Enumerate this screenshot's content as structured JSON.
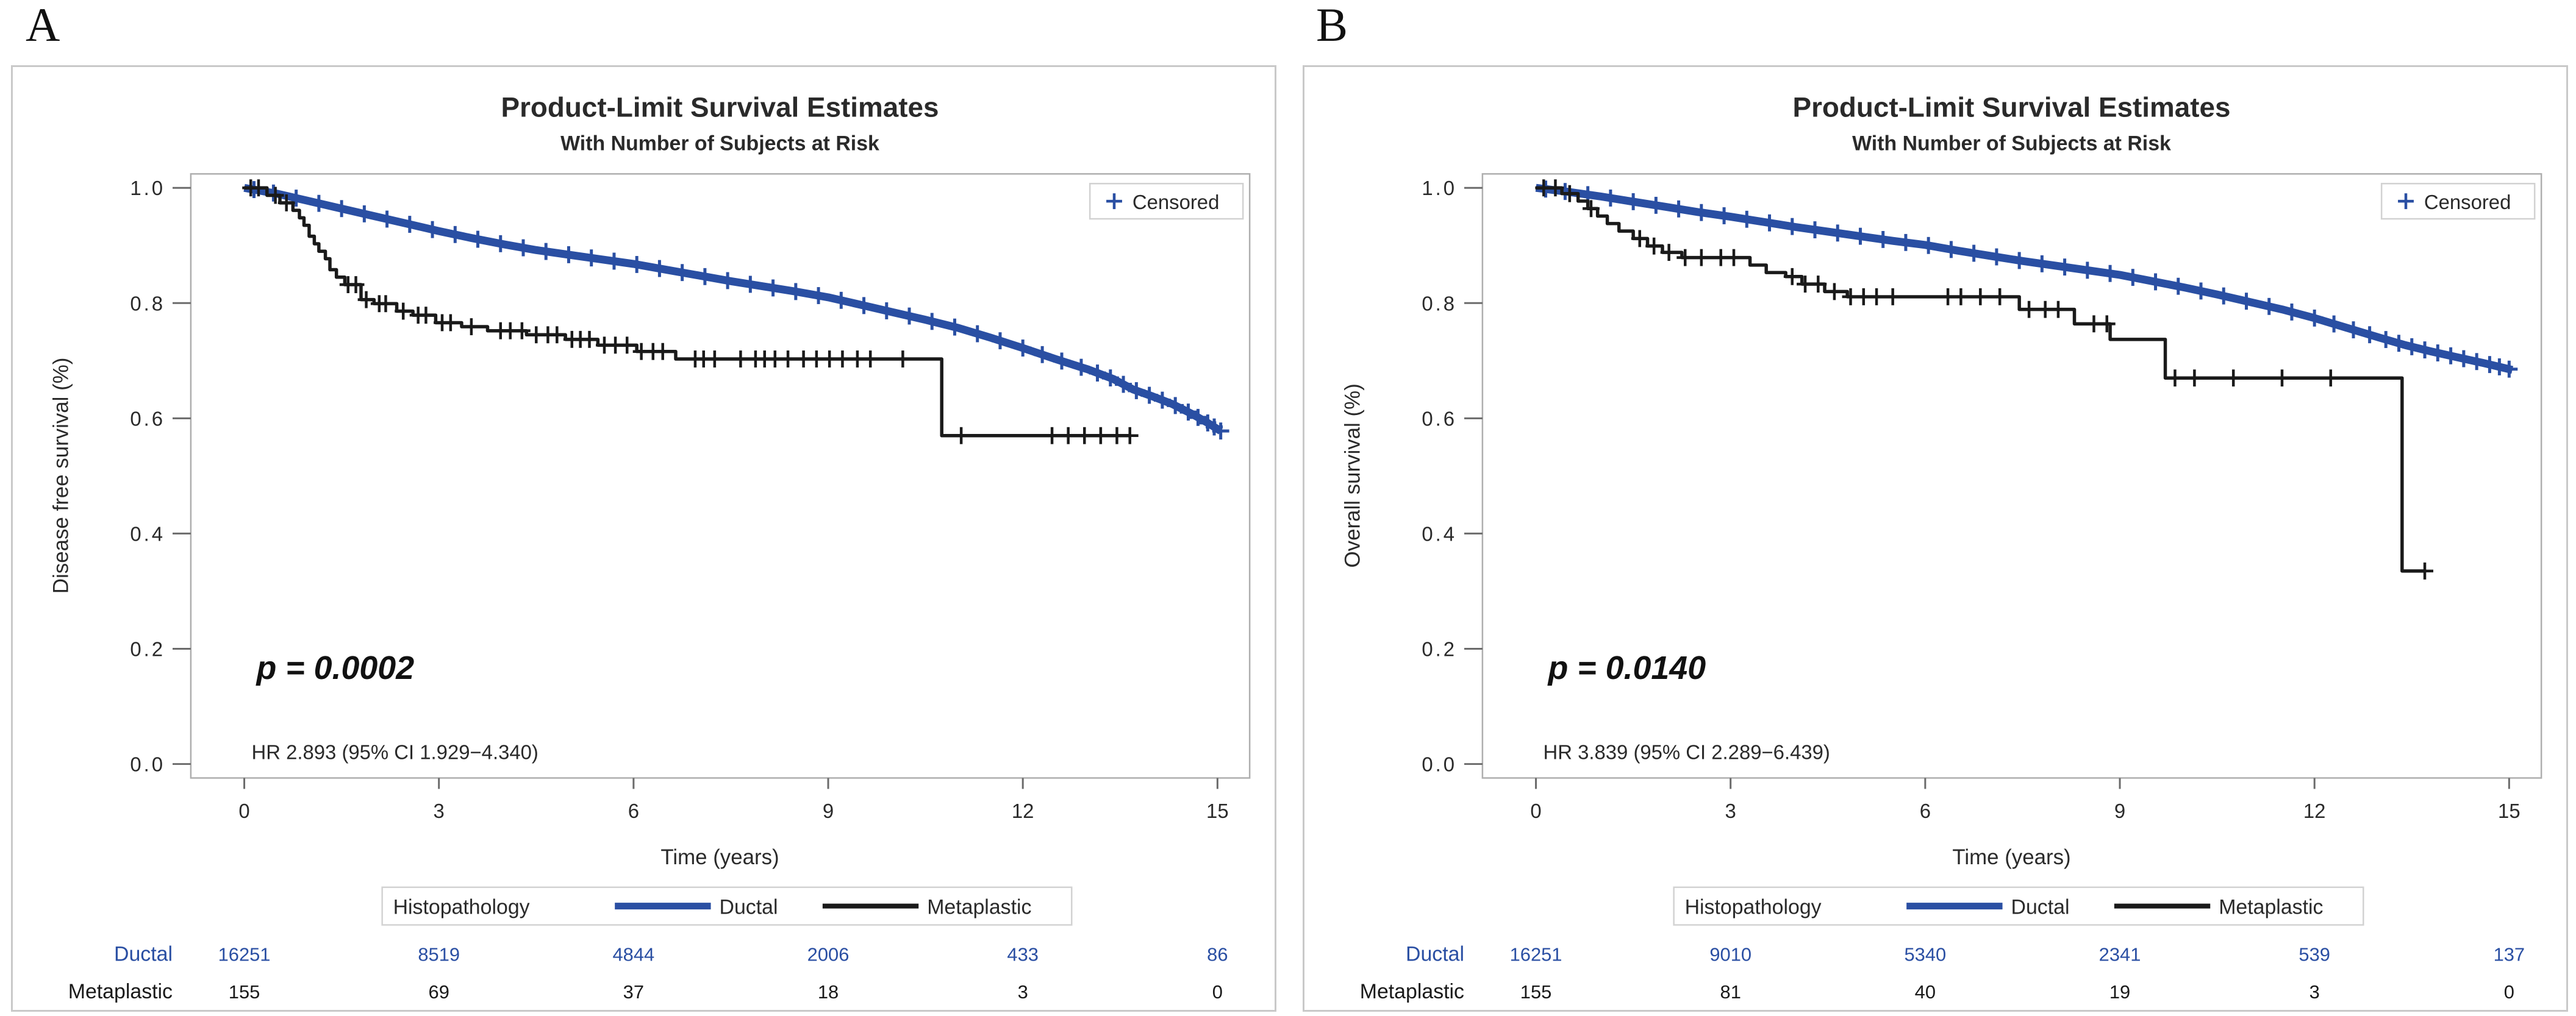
{
  "page_background": "#ffffff",
  "panel_labels": [
    "A",
    "B"
  ],
  "chart_data": [
    {
      "type": "line",
      "km_panel": "A",
      "title": "Product-Limit Survival Estimates",
      "subtitle": "With Number of Subjects at Risk",
      "xlabel": "Time (years)",
      "ylabel": "Disease free survival (%)",
      "xlim": [
        0,
        15.4
      ],
      "ylim": [
        0.0,
        1.0
      ],
      "xticks": [
        0,
        3,
        6,
        9,
        12,
        15
      ],
      "ytick_labels": [
        "1.0",
        "0.8",
        "0.6",
        "0.4",
        "0.2",
        "0.0"
      ],
      "grid": false,
      "censored_legend_label": "Censored",
      "censored_marker_color": "#2a4fa3",
      "p_value_text": "p = 0.0002",
      "hr_text": "HR 2.893 (95% CI 1.929−4.340)",
      "legend": {
        "title": "Histopathology",
        "position": "bottom"
      },
      "series": [
        {
          "name": "Ductal",
          "color": "#2a4fa3",
          "step": false,
          "points": [
            [
              0,
              1.0
            ],
            [
              0.5,
              0.99
            ],
            [
              1,
              0.977
            ],
            [
              1.5,
              0.964
            ],
            [
              2,
              0.951
            ],
            [
              2.5,
              0.938
            ],
            [
              3,
              0.925
            ],
            [
              3.5,
              0.913
            ],
            [
              4,
              0.902
            ],
            [
              4.5,
              0.892
            ],
            [
              5,
              0.884
            ],
            [
              5.5,
              0.876
            ],
            [
              6,
              0.868
            ],
            [
              6.5,
              0.858
            ],
            [
              7,
              0.848
            ],
            [
              7.5,
              0.838
            ],
            [
              8,
              0.829
            ],
            [
              8.5,
              0.82
            ],
            [
              9,
              0.81
            ],
            [
              9.5,
              0.797
            ],
            [
              10,
              0.784
            ],
            [
              10.5,
              0.771
            ],
            [
              11,
              0.757
            ],
            [
              11.5,
              0.74
            ],
            [
              12,
              0.722
            ],
            [
              12.5,
              0.703
            ],
            [
              13,
              0.685
            ],
            [
              13.4,
              0.668
            ],
            [
              13.7,
              0.65
            ],
            [
              14,
              0.638
            ],
            [
              14.3,
              0.625
            ],
            [
              14.6,
              0.608
            ],
            [
              14.85,
              0.592
            ],
            [
              15.05,
              0.578
            ]
          ],
          "censor_times": [
            0.15,
            0.45,
            0.8,
            1.15,
            1.5,
            1.85,
            2.2,
            2.55,
            2.9,
            3.25,
            3.6,
            3.95,
            4.3,
            4.65,
            5.0,
            5.35,
            5.7,
            6.05,
            6.4,
            6.75,
            7.1,
            7.45,
            7.8,
            8.15,
            8.5,
            8.85,
            9.2,
            9.55,
            9.9,
            10.25,
            10.6,
            10.95,
            11.3,
            11.65,
            12.0,
            12.3,
            12.6,
            12.9,
            13.15,
            13.35,
            13.55,
            13.75,
            13.95,
            14.15,
            14.35,
            14.55,
            14.7,
            14.85,
            14.95,
            15.05
          ]
        },
        {
          "name": "Metaplastic",
          "color": "#1a1a1a",
          "step": true,
          "points": [
            [
              0,
              1.0
            ],
            [
              0.35,
              0.987
            ],
            [
              0.55,
              0.974
            ],
            [
              0.75,
              0.961
            ],
            [
              0.85,
              0.948
            ],
            [
              0.92,
              0.935
            ],
            [
              1.0,
              0.916
            ],
            [
              1.08,
              0.903
            ],
            [
              1.15,
              0.89
            ],
            [
              1.25,
              0.877
            ],
            [
              1.32,
              0.858
            ],
            [
              1.42,
              0.845
            ],
            [
              1.55,
              0.832
            ],
            [
              1.8,
              0.806
            ],
            [
              2.0,
              0.799
            ],
            [
              2.35,
              0.786
            ],
            [
              2.6,
              0.779
            ],
            [
              2.95,
              0.766
            ],
            [
              3.35,
              0.759
            ],
            [
              3.75,
              0.752
            ],
            [
              4.35,
              0.745
            ],
            [
              4.95,
              0.737
            ],
            [
              5.45,
              0.727
            ],
            [
              6.05,
              0.716
            ],
            [
              6.65,
              0.703
            ],
            [
              10.75,
              0.57
            ],
            [
              13.65,
              0.57
            ]
          ],
          "censor_times": [
            0.1,
            0.22,
            0.48,
            0.65,
            1.6,
            1.72,
            1.88,
            2.08,
            2.18,
            2.45,
            2.68,
            2.8,
            3.05,
            3.18,
            3.5,
            3.95,
            4.1,
            4.28,
            4.5,
            4.68,
            4.82,
            5.05,
            5.18,
            5.32,
            5.55,
            5.72,
            5.9,
            6.12,
            6.3,
            6.45,
            6.95,
            7.08,
            7.25,
            7.65,
            7.88,
            8.02,
            8.18,
            8.38,
            8.62,
            8.82,
            9.02,
            9.22,
            9.45,
            9.65,
            10.15,
            11.05,
            12.45,
            12.7,
            12.95,
            13.2,
            13.45,
            13.65
          ]
        }
      ],
      "at_risk": {
        "times": [
          0,
          3,
          6,
          9,
          12,
          15
        ],
        "rows": [
          {
            "name": "Ductal",
            "color": "#2a4fa3",
            "counts": [
              "16251",
              "8519",
              "4844",
              "2006",
              "433",
              "86"
            ]
          },
          {
            "name": "Metaplastic",
            "color": "#1a1a1a",
            "counts": [
              "155",
              "69",
              "37",
              "18",
              "3",
              "0"
            ]
          }
        ]
      }
    },
    {
      "type": "line",
      "km_panel": "B",
      "title": "Product-Limit Survival Estimates",
      "subtitle": "With Number of Subjects at Risk",
      "xlabel": "Time (years)",
      "ylabel": "Overall survival (%)",
      "xlim": [
        0,
        15.4
      ],
      "ylim": [
        0.0,
        1.0
      ],
      "xticks": [
        0,
        3,
        6,
        9,
        12,
        15
      ],
      "ytick_labels": [
        "1.0",
        "0.8",
        "0.6",
        "0.4",
        "0.2",
        "0.0"
      ],
      "grid": false,
      "censored_legend_label": "Censored",
      "censored_marker_color": "#2a4fa3",
      "p_value_text": "p = 0.0140",
      "hr_text": "HR 3.839 (95% CI 2.289−6.439)",
      "legend": {
        "title": "Histopathology",
        "position": "bottom"
      },
      "series": [
        {
          "name": "Ductal",
          "color": "#2a4fa3",
          "step": false,
          "points": [
            [
              0,
              1.0
            ],
            [
              0.5,
              0.993
            ],
            [
              1,
              0.985
            ],
            [
              1.5,
              0.976
            ],
            [
              2,
              0.967
            ],
            [
              2.5,
              0.958
            ],
            [
              3,
              0.95
            ],
            [
              3.5,
              0.941
            ],
            [
              4,
              0.932
            ],
            [
              4.5,
              0.924
            ],
            [
              5,
              0.916
            ],
            [
              5.5,
              0.908
            ],
            [
              6,
              0.901
            ],
            [
              6.5,
              0.891
            ],
            [
              7,
              0.882
            ],
            [
              7.5,
              0.873
            ],
            [
              8,
              0.865
            ],
            [
              8.5,
              0.857
            ],
            [
              9,
              0.849
            ],
            [
              9.5,
              0.838
            ],
            [
              10,
              0.827
            ],
            [
              10.5,
              0.815
            ],
            [
              11,
              0.802
            ],
            [
              11.5,
              0.789
            ],
            [
              12,
              0.774
            ],
            [
              12.5,
              0.757
            ],
            [
              13,
              0.74
            ],
            [
              13.4,
              0.727
            ],
            [
              13.8,
              0.716
            ],
            [
              14.2,
              0.706
            ],
            [
              14.6,
              0.696
            ],
            [
              15.05,
              0.684
            ]
          ],
          "censor_times": [
            0.15,
            0.45,
            0.8,
            1.15,
            1.5,
            1.85,
            2.2,
            2.55,
            2.9,
            3.25,
            3.6,
            3.95,
            4.3,
            4.65,
            5.0,
            5.35,
            5.7,
            6.05,
            6.4,
            6.75,
            7.1,
            7.45,
            7.8,
            8.15,
            8.5,
            8.85,
            9.2,
            9.55,
            9.9,
            10.25,
            10.6,
            10.95,
            11.3,
            11.65,
            12.0,
            12.3,
            12.6,
            12.85,
            13.1,
            13.3,
            13.5,
            13.7,
            13.9,
            14.1,
            14.3,
            14.5,
            14.7,
            14.85,
            15.0
          ]
        },
        {
          "name": "Metaplastic",
          "color": "#1a1a1a",
          "step": true,
          "points": [
            [
              0,
              1.0
            ],
            [
              0.4,
              0.99
            ],
            [
              0.65,
              0.977
            ],
            [
              0.8,
              0.964
            ],
            [
              0.95,
              0.951
            ],
            [
              1.1,
              0.938
            ],
            [
              1.28,
              0.925
            ],
            [
              1.5,
              0.912
            ],
            [
              1.72,
              0.899
            ],
            [
              1.95,
              0.888
            ],
            [
              2.25,
              0.879
            ],
            [
              3.3,
              0.866
            ],
            [
              3.55,
              0.853
            ],
            [
              3.85,
              0.846
            ],
            [
              4.1,
              0.833
            ],
            [
              4.45,
              0.82
            ],
            [
              4.8,
              0.811
            ],
            [
              7.45,
              0.789
            ],
            [
              8.3,
              0.764
            ],
            [
              8.85,
              0.737
            ],
            [
              9.7,
              0.67
            ],
            [
              13.35,
              0.335
            ],
            [
              13.7,
              0.335
            ]
          ],
          "censor_times": [
            0.12,
            0.3,
            0.52,
            0.85,
            1.6,
            1.82,
            2.05,
            2.3,
            2.55,
            2.85,
            3.05,
            3.95,
            4.15,
            4.35,
            4.6,
            4.85,
            5.05,
            5.25,
            5.5,
            6.35,
            6.55,
            6.85,
            7.15,
            7.6,
            7.85,
            8.05,
            8.6,
            8.8,
            9.85,
            10.15,
            10.75,
            11.5,
            12.25,
            13.7
          ]
        }
      ],
      "at_risk": {
        "times": [
          0,
          3,
          6,
          9,
          12,
          15
        ],
        "rows": [
          {
            "name": "Ductal",
            "color": "#2a4fa3",
            "counts": [
              "16251",
              "9010",
              "5340",
              "2341",
              "539",
              "137"
            ]
          },
          {
            "name": "Metaplastic",
            "color": "#1a1a1a",
            "counts": [
              "155",
              "81",
              "40",
              "19",
              "3",
              "0"
            ]
          }
        ]
      }
    }
  ]
}
